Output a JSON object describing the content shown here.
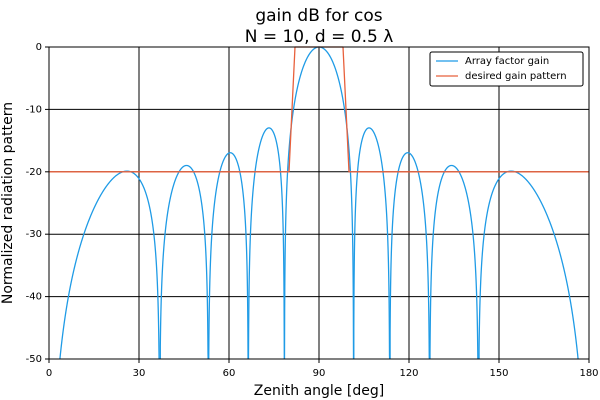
{
  "chart_data": {
    "type": "line",
    "title_line1": "gain dB for cos",
    "title_line2": "N = 10, d = 0.5 λ",
    "xlabel": "Zenith angle [deg]",
    "ylabel": "Normalized radiation pattern",
    "xlim": [
      0,
      180
    ],
    "ylim": [
      -50,
      0
    ],
    "xticks": [
      0,
      30,
      60,
      90,
      120,
      150,
      180
    ],
    "yticks": [
      0,
      -10,
      -20,
      -30,
      -40,
      -50
    ],
    "grid": true,
    "legend_position": "top-right",
    "array": {
      "N": 10,
      "d_over_lambda": 0.5,
      "min_db": -50
    },
    "series": [
      {
        "name": "Array factor gain",
        "color": "#1f9be6",
        "kind": "array-factor",
        "x_range": [
          0,
          180
        ]
      },
      {
        "name": "desired gain pattern",
        "color": "#e8603c",
        "kind": "polyline",
        "x": [
          0,
          80,
          82,
          98,
          100,
          180
        ],
        "y": [
          -20,
          -20,
          0,
          0,
          -20,
          -20
        ]
      }
    ]
  }
}
